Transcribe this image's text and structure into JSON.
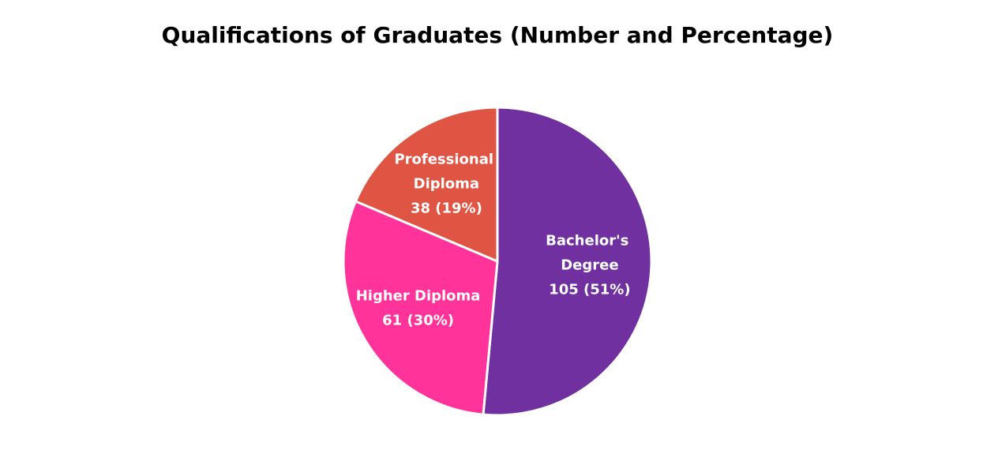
{
  "chart_data": {
    "type": "pie",
    "title": "Qualifications of Graduates (Number and Percentage)",
    "categories": [
      "Bachelor's Degree",
      "Higher Diploma",
      "Professional Diploma"
    ],
    "values": [
      105,
      61,
      38
    ],
    "value_labels": [
      "105 (51%)",
      "61 (30%)",
      "38 (19%)"
    ],
    "colors": [
      "#7030a0",
      "#ff3399",
      "#e05444"
    ]
  }
}
